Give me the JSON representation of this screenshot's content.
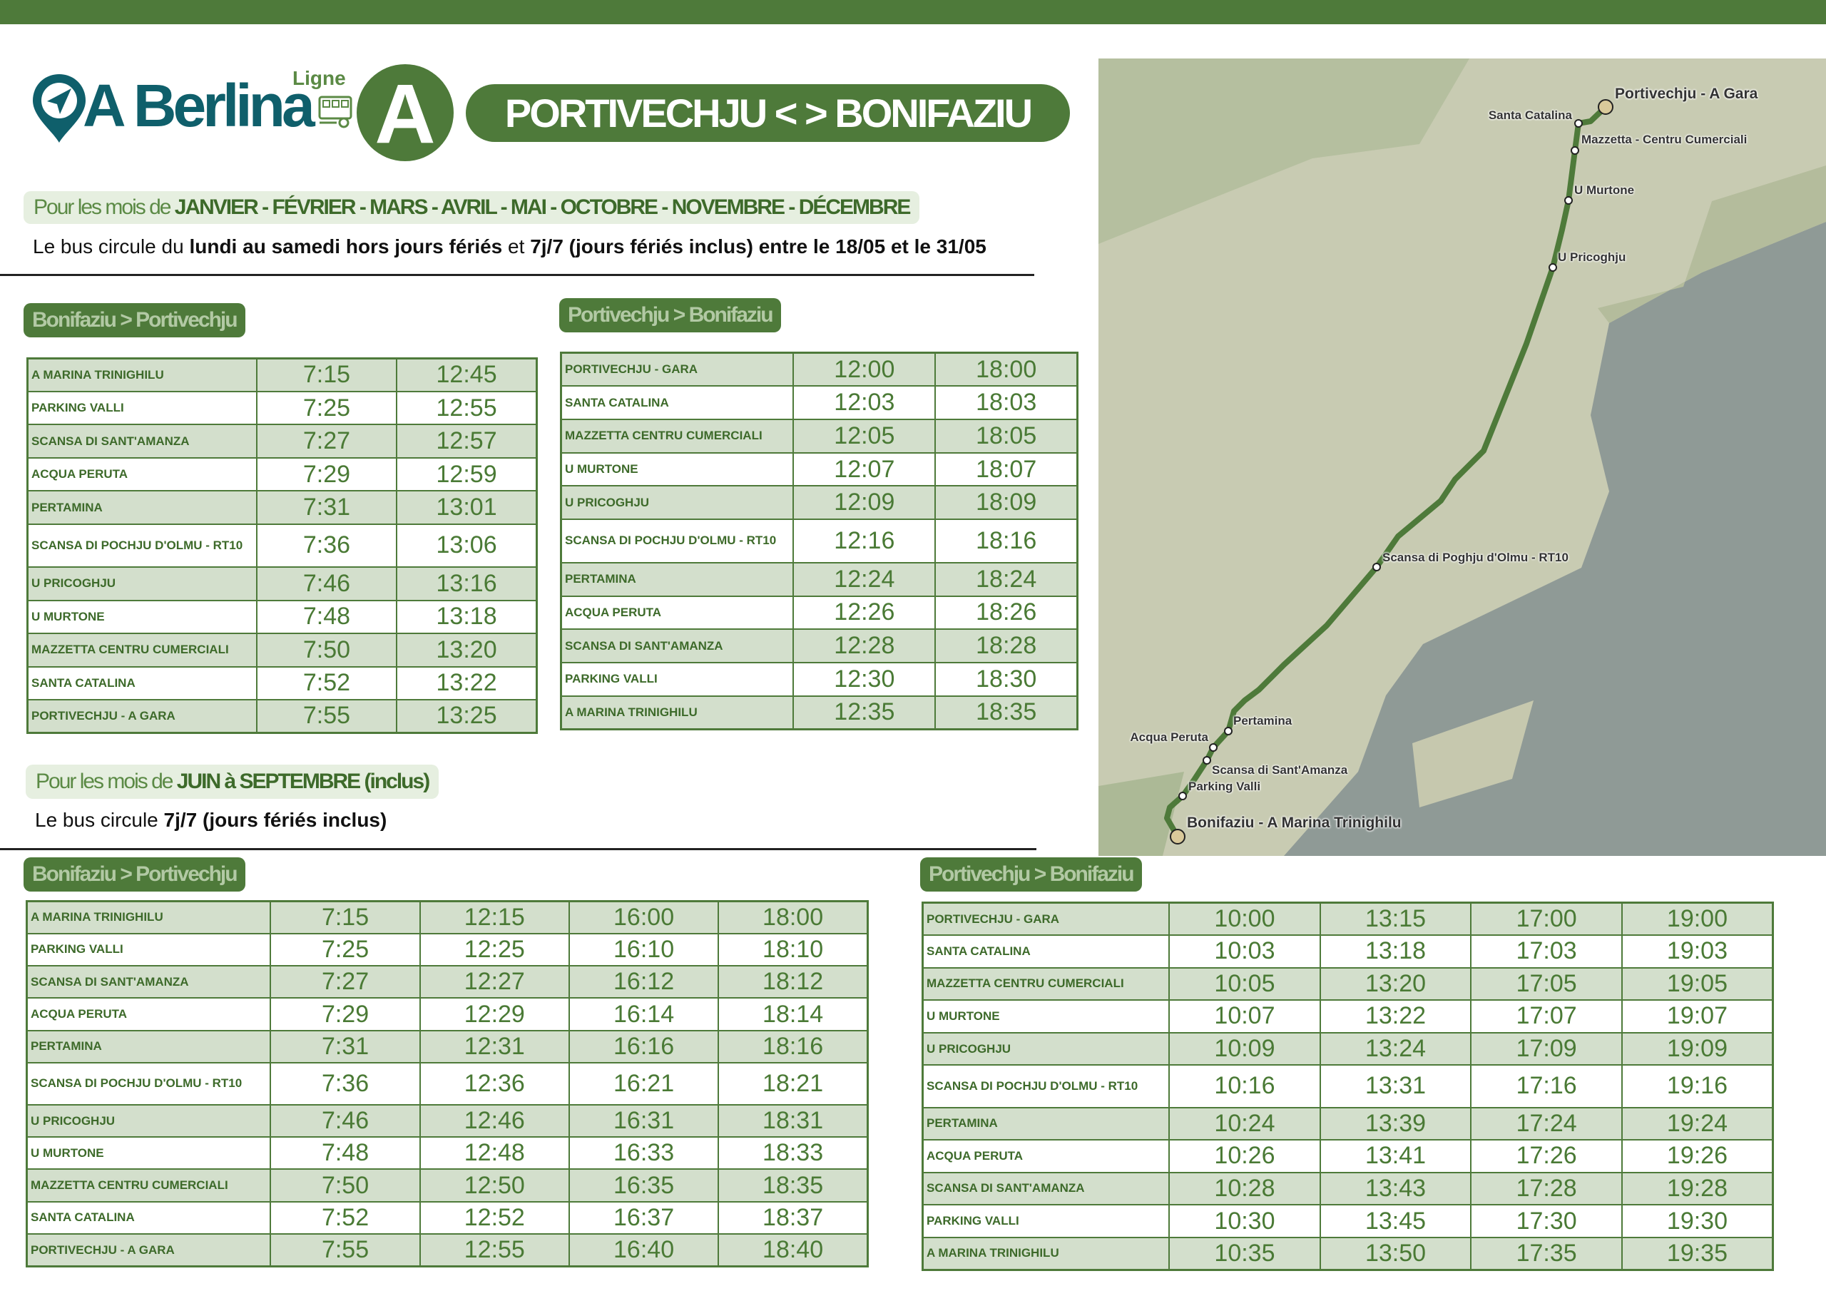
{
  "brand": {
    "name": "A Berlina",
    "ligne_label": "Ligne",
    "line_letter": "A"
  },
  "route_title": "PORTIVECHJU < > BONIFAZIU",
  "colors": {
    "primary_green": "#4e7a3a",
    "light_green": "#d3dfcc",
    "brand_teal": "#0f5f6b"
  },
  "winter": {
    "months_prefix": "Pour les mois de",
    "months": "JANVIER - FÉVRIER - MARS - AVRIL  - MAI -  OCTOBRE - NOVEMBRE - DÉCEMBRE",
    "info_prefix": "Le bus circule du",
    "info_bold1": "lundi au samedi hors jours fériés",
    "info_mid": "et",
    "info_bold2": "7j/7 (jours fériés inclus) entre le 18/05 et le 31/05"
  },
  "summer": {
    "months_prefix": "Pour les mois de",
    "months": "JUIN  à  SEPTEMBRE (inclus)",
    "info_prefix": "Le bus circule",
    "info_bold": "7j/7 (jours fériés inclus)"
  },
  "schedules": [
    {
      "label": "Bonifaziu > Portivechju",
      "stops": [
        {
          "name": "A MARINA TRINIGHILU",
          "times": [
            "7:15",
            "12:45"
          ]
        },
        {
          "name": "PARKING VALLI",
          "times": [
            "7:25",
            "12:55"
          ]
        },
        {
          "name": "SCANSA DI SANT'AMANZA",
          "times": [
            "7:27",
            "12:57"
          ]
        },
        {
          "name": "ACQUA PERUTA",
          "times": [
            "7:29",
            "12:59"
          ]
        },
        {
          "name": "PERTAMINA",
          "times": [
            "7:31",
            "13:01"
          ]
        },
        {
          "name": "SCANSA DI POCHJU D'OLMU - RT10",
          "times": [
            "7:36",
            "13:06"
          ]
        },
        {
          "name": "U PRICOGHJU",
          "times": [
            "7:46",
            "13:16"
          ]
        },
        {
          "name": "U MURTONE",
          "times": [
            "7:48",
            "13:18"
          ]
        },
        {
          "name": "MAZZETTA CENTRU CUMERCIALI",
          "times": [
            "7:50",
            "13:20"
          ]
        },
        {
          "name": "SANTA CATALINA",
          "times": [
            "7:52",
            "13:22"
          ]
        },
        {
          "name": "PORTIVECHJU - A GARA",
          "times": [
            "7:55",
            "13:25"
          ]
        }
      ]
    },
    {
      "label": "Portivechju > Bonifaziu",
      "stops": [
        {
          "name": "PORTIVECHJU - GARA",
          "times": [
            "12:00",
            "18:00"
          ]
        },
        {
          "name": "SANTA CATALINA",
          "times": [
            "12:03",
            "18:03"
          ]
        },
        {
          "name": "MAZZETTA CENTRU CUMERCIALI",
          "times": [
            "12:05",
            "18:05"
          ]
        },
        {
          "name": "U MURTONE",
          "times": [
            "12:07",
            "18:07"
          ]
        },
        {
          "name": "U PRICOGHJU",
          "times": [
            "12:09",
            "18:09"
          ]
        },
        {
          "name": "SCANSA DI POCHJU D'OLMU - RT10",
          "times": [
            "12:16",
            "18:16"
          ]
        },
        {
          "name": "PERTAMINA",
          "times": [
            "12:24",
            "18:24"
          ]
        },
        {
          "name": "ACQUA PERUTA",
          "times": [
            "12:26",
            "18:26"
          ]
        },
        {
          "name": "SCANSA DI SANT'AMANZA",
          "times": [
            "12:28",
            "18:28"
          ]
        },
        {
          "name": "PARKING VALLI",
          "times": [
            "12:30",
            "18:30"
          ]
        },
        {
          "name": "A MARINA TRINIGHILU",
          "times": [
            "12:35",
            "18:35"
          ]
        }
      ]
    },
    {
      "label": "Bonifaziu > Portivechju",
      "stops": [
        {
          "name": "A MARINA TRINIGHILU",
          "times": [
            "7:15",
            "12:15",
            "16:00",
            "18:00"
          ]
        },
        {
          "name": "PARKING VALLI",
          "times": [
            "7:25",
            "12:25",
            "16:10",
            "18:10"
          ]
        },
        {
          "name": "SCANSA DI SANT'AMANZA",
          "times": [
            "7:27",
            "12:27",
            "16:12",
            "18:12"
          ]
        },
        {
          "name": "ACQUA PERUTA",
          "times": [
            "7:29",
            "12:29",
            "16:14",
            "18:14"
          ]
        },
        {
          "name": "PERTAMINA",
          "times": [
            "7:31",
            "12:31",
            "16:16",
            "18:16"
          ]
        },
        {
          "name": "SCANSA DI POCHJU D'OLMU - RT10",
          "times": [
            "7:36",
            "12:36",
            "16:21",
            "18:21"
          ]
        },
        {
          "name": "U PRICOGHJU",
          "times": [
            "7:46",
            "12:46",
            "16:31",
            "18:31"
          ]
        },
        {
          "name": "U MURTONE",
          "times": [
            "7:48",
            "12:48",
            "16:33",
            "18:33"
          ]
        },
        {
          "name": "MAZZETTA CENTRU CUMERCIALI",
          "times": [
            "7:50",
            "12:50",
            "16:35",
            "18:35"
          ]
        },
        {
          "name": "SANTA CATALINA",
          "times": [
            "7:52",
            "12:52",
            "16:37",
            "18:37"
          ]
        },
        {
          "name": "PORTIVECHJU - A GARA",
          "times": [
            "7:55",
            "12:55",
            "16:40",
            "18:40"
          ]
        }
      ]
    },
    {
      "label": "Portivechju > Bonifaziu",
      "stops": [
        {
          "name": "PORTIVECHJU - GARA",
          "times": [
            "10:00",
            "13:15",
            "17:00",
            "19:00"
          ]
        },
        {
          "name": "SANTA CATALINA",
          "times": [
            "10:03",
            "13:18",
            "17:03",
            "19:03"
          ]
        },
        {
          "name": "MAZZETTA CENTRU CUMERCIALI",
          "times": [
            "10:05",
            "13:20",
            "17:05",
            "19:05"
          ]
        },
        {
          "name": "U MURTONE",
          "times": [
            "10:07",
            "13:22",
            "17:07",
            "19:07"
          ]
        },
        {
          "name": "U PRICOGHJU",
          "times": [
            "10:09",
            "13:24",
            "17:09",
            "19:09"
          ]
        },
        {
          "name": "SCANSA DI POCHJU D'OLMU - RT10",
          "times": [
            "10:16",
            "13:31",
            "17:16",
            "19:16"
          ]
        },
        {
          "name": "PERTAMINA",
          "times": [
            "10:24",
            "13:39",
            "17:24",
            "19:24"
          ]
        },
        {
          "name": "ACQUA PERUTA",
          "times": [
            "10:26",
            "13:41",
            "17:26",
            "19:26"
          ]
        },
        {
          "name": "SCANSA DI SANT'AMANZA",
          "times": [
            "10:28",
            "13:43",
            "17:28",
            "19:28"
          ]
        },
        {
          "name": "PARKING VALLI",
          "times": [
            "10:30",
            "13:45",
            "17:30",
            "19:30"
          ]
        },
        {
          "name": "A MARINA TRINIGHILU",
          "times": [
            "10:35",
            "13:50",
            "17:35",
            "19:35"
          ]
        }
      ]
    }
  ],
  "map": {
    "stops": [
      "Portivechju - A Gara",
      "Santa Catalina",
      "Mazzetta - Centru Cumerciali",
      "U Murtone",
      "U Pricoghju",
      "Scansa di Poghju d'Olmu - RT10",
      "Pertamina",
      "Acqua Peruta",
      "Scansa di Sant'Amanza",
      "Parking Valli",
      "Bonifaziu - A Marina Trinighilu"
    ]
  }
}
